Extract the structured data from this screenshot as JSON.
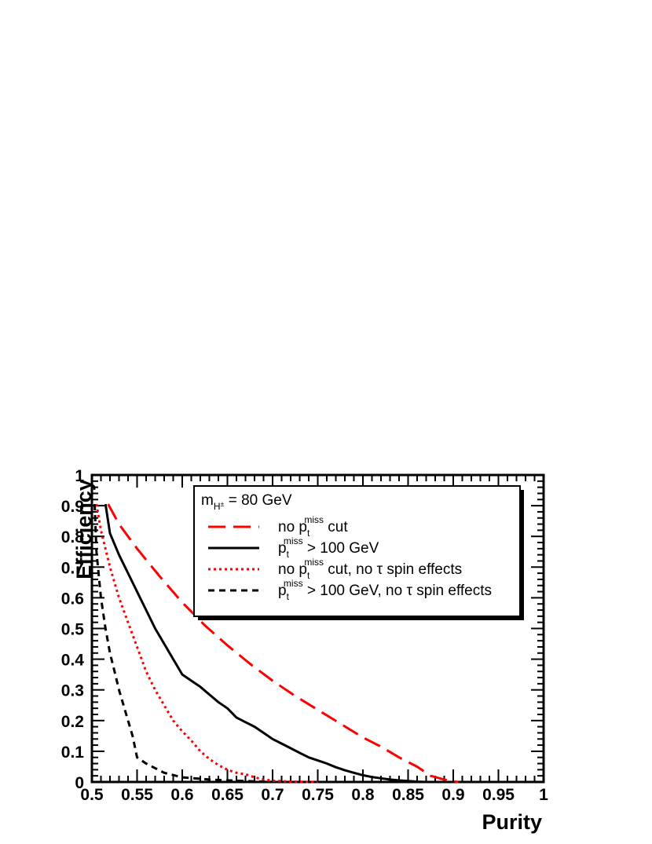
{
  "chart_data": {
    "type": "line",
    "xlabel": "Purity",
    "ylabel": "Efficiency",
    "xlim": [
      0.5,
      1.0
    ],
    "ylim": [
      0,
      1.0
    ],
    "x_ticks": [
      "0.5",
      "0.55",
      "0.6",
      "0.65",
      "0.7",
      "0.75",
      "0.8",
      "0.85",
      "0.9",
      "0.95",
      "1"
    ],
    "y_ticks": [
      "0",
      "0.1",
      "0.2",
      "0.3",
      "0.4",
      "0.5",
      "0.6",
      "0.7",
      "0.8",
      "0.9",
      "1"
    ],
    "legend": {
      "placement": "top-right",
      "header": {
        "main": "m",
        "sub": "H",
        "sup": "±",
        "rest": " = 80 GeV"
      }
    },
    "series": [
      {
        "name": "no p_t^miss cut",
        "label_parts": {
          "pre": "no p",
          "sub": "t",
          "sup": "miss",
          "post": " cut"
        },
        "color": "#ff0000",
        "dash": "long-dash",
        "x": [
          0.518,
          0.53,
          0.55,
          0.575,
          0.6,
          0.625,
          0.65,
          0.675,
          0.7,
          0.725,
          0.75,
          0.775,
          0.8,
          0.82,
          0.84,
          0.86,
          0.875,
          0.89,
          0.9,
          0.905
        ],
        "y": [
          0.905,
          0.84,
          0.76,
          0.67,
          0.585,
          0.51,
          0.445,
          0.385,
          0.33,
          0.28,
          0.235,
          0.19,
          0.145,
          0.115,
          0.08,
          0.05,
          0.02,
          0.008,
          0.002,
          0.0
        ]
      },
      {
        "name": "p_t^miss > 100 GeV",
        "label_parts": {
          "pre": "p",
          "sub": "t",
          "sup": "miss",
          "post": " > 100 GeV"
        },
        "color": "#000000",
        "dash": "solid",
        "x": [
          0.515,
          0.52,
          0.53,
          0.54,
          0.55,
          0.56,
          0.57,
          0.58,
          0.59,
          0.6,
          0.61,
          0.62,
          0.63,
          0.64,
          0.65,
          0.66,
          0.67,
          0.68,
          0.69,
          0.7,
          0.71,
          0.72,
          0.73,
          0.74,
          0.75,
          0.76,
          0.77,
          0.78,
          0.79,
          0.8,
          0.81,
          0.82,
          0.83,
          0.84,
          0.85,
          0.86,
          0.87
        ],
        "y": [
          0.905,
          0.81,
          0.74,
          0.68,
          0.62,
          0.56,
          0.5,
          0.45,
          0.4,
          0.35,
          0.33,
          0.31,
          0.285,
          0.26,
          0.24,
          0.21,
          0.195,
          0.18,
          0.16,
          0.14,
          0.125,
          0.11,
          0.095,
          0.08,
          0.07,
          0.06,
          0.048,
          0.038,
          0.03,
          0.022,
          0.016,
          0.012,
          0.008,
          0.005,
          0.003,
          0.001,
          0.0
        ]
      },
      {
        "name": "no p_t^miss cut, no τ spin effects",
        "label_parts": {
          "pre": "no p",
          "sub": "t",
          "sup": "miss",
          "post": " cut, no τ spin effects"
        },
        "color": "#ff0000",
        "dash": "dotted",
        "x": [
          0.505,
          0.51,
          0.52,
          0.53,
          0.54,
          0.55,
          0.56,
          0.57,
          0.58,
          0.59,
          0.6,
          0.61,
          0.62,
          0.63,
          0.64,
          0.65,
          0.66,
          0.67,
          0.68,
          0.69,
          0.7,
          0.72,
          0.75
        ],
        "y": [
          0.905,
          0.82,
          0.7,
          0.6,
          0.52,
          0.44,
          0.36,
          0.3,
          0.25,
          0.2,
          0.165,
          0.135,
          0.1,
          0.075,
          0.055,
          0.04,
          0.03,
          0.025,
          0.015,
          0.008,
          0.004,
          0.001,
          0.0
        ]
      },
      {
        "name": "p_t^miss > 100 GeV, no τ spin effects",
        "label_parts": {
          "pre": "p",
          "sub": "t",
          "sup": "miss",
          "post": " > 100 GeV, no τ spin effects"
        },
        "color": "#000000",
        "dash": "dashed",
        "x": [
          0.503,
          0.505,
          0.51,
          0.515,
          0.52,
          0.525,
          0.53,
          0.54,
          0.545,
          0.55,
          0.56,
          0.57,
          0.58,
          0.6,
          0.63,
          0.66,
          0.7
        ],
        "y": [
          0.905,
          0.75,
          0.6,
          0.5,
          0.42,
          0.36,
          0.3,
          0.2,
          0.15,
          0.08,
          0.06,
          0.045,
          0.03,
          0.015,
          0.008,
          0.004,
          0.0
        ]
      }
    ]
  }
}
